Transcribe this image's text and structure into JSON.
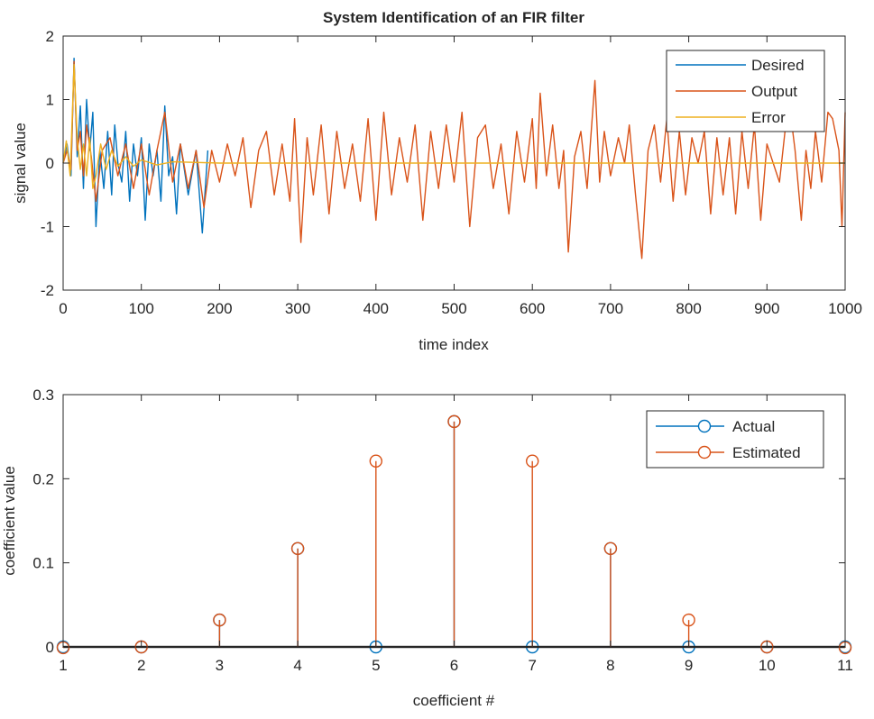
{
  "chart_data": [
    {
      "type": "line",
      "title": "System Identification of an FIR filter",
      "xlabel": "time index",
      "ylabel": "signal value",
      "xlim": [
        0,
        1000
      ],
      "ylim": [
        -2,
        2
      ],
      "xticks": [
        0,
        100,
        200,
        300,
        400,
        500,
        600,
        700,
        800,
        900,
        1000
      ],
      "yticks": [
        -2,
        -1,
        0,
        1,
        2
      ],
      "grid": false,
      "legend_position": "top-right",
      "series": [
        {
          "name": "Desired",
          "color": "#0072BD",
          "points": [
            [
              0,
              0.0
            ],
            [
              5,
              0.3
            ],
            [
              10,
              -0.2
            ],
            [
              14,
              1.65
            ],
            [
              18,
              0.1
            ],
            [
              22,
              0.9
            ],
            [
              26,
              -0.4
            ],
            [
              30,
              1.0
            ],
            [
              34,
              0.2
            ],
            [
              38,
              0.8
            ],
            [
              42,
              -1.0
            ],
            [
              47,
              0.2
            ],
            [
              52,
              -0.4
            ],
            [
              57,
              0.5
            ],
            [
              62,
              -0.5
            ],
            [
              66,
              0.6
            ],
            [
              70,
              0.0
            ],
            [
              75,
              -0.3
            ],
            [
              80,
              0.5
            ],
            [
              85,
              -0.6
            ],
            [
              90,
              0.3
            ],
            [
              95,
              -0.2
            ],
            [
              100,
              0.4
            ],
            [
              105,
              -0.9
            ],
            [
              110,
              0.3
            ],
            [
              115,
              -0.2
            ],
            [
              120,
              0.2
            ],
            [
              125,
              -0.6
            ],
            [
              130,
              0.9
            ],
            [
              135,
              -0.2
            ],
            [
              140,
              0.1
            ],
            [
              145,
              -0.8
            ],
            [
              150,
              0.3
            ],
            [
              160,
              -0.5
            ],
            [
              170,
              0.2
            ],
            [
              178,
              -1.1
            ],
            [
              185,
              0.2
            ]
          ]
        },
        {
          "name": "Output",
          "color": "#D95319",
          "points": [
            [
              0,
              0.0
            ],
            [
              5,
              0.2
            ],
            [
              10,
              -0.1
            ],
            [
              14,
              1.6
            ],
            [
              18,
              0.2
            ],
            [
              22,
              0.5
            ],
            [
              26,
              -0.2
            ],
            [
              30,
              0.6
            ],
            [
              36,
              0.1
            ],
            [
              42,
              -0.6
            ],
            [
              50,
              0.2
            ],
            [
              60,
              0.4
            ],
            [
              70,
              -0.2
            ],
            [
              80,
              0.3
            ],
            [
              90,
              -0.4
            ],
            [
              100,
              0.3
            ],
            [
              110,
              -0.5
            ],
            [
              120,
              0.2
            ],
            [
              130,
              0.8
            ],
            [
              140,
              -0.3
            ],
            [
              150,
              0.3
            ],
            [
              160,
              -0.4
            ],
            [
              170,
              0.2
            ],
            [
              180,
              -0.7
            ],
            [
              190,
              0.2
            ],
            [
              200,
              -0.3
            ],
            [
              210,
              0.3
            ],
            [
              220,
              -0.2
            ],
            [
              230,
              0.4
            ],
            [
              240,
              -0.7
            ],
            [
              250,
              0.2
            ],
            [
              260,
              0.5
            ],
            [
              270,
              -0.5
            ],
            [
              280,
              0.3
            ],
            [
              290,
              -0.6
            ],
            [
              296,
              0.7
            ],
            [
              304,
              -1.25
            ],
            [
              312,
              0.4
            ],
            [
              320,
              -0.5
            ],
            [
              330,
              0.6
            ],
            [
              340,
              -0.8
            ],
            [
              350,
              0.5
            ],
            [
              360,
              -0.4
            ],
            [
              370,
              0.3
            ],
            [
              380,
              -0.6
            ],
            [
              390,
              0.7
            ],
            [
              400,
              -0.9
            ],
            [
              410,
              0.8
            ],
            [
              420,
              -0.5
            ],
            [
              430,
              0.4
            ],
            [
              440,
              -0.3
            ],
            [
              450,
              0.6
            ],
            [
              460,
              -0.9
            ],
            [
              470,
              0.5
            ],
            [
              480,
              -0.4
            ],
            [
              490,
              0.6
            ],
            [
              500,
              -0.3
            ],
            [
              510,
              0.8
            ],
            [
              520,
              -1.0
            ],
            [
              530,
              0.4
            ],
            [
              540,
              0.6
            ],
            [
              550,
              -0.4
            ],
            [
              560,
              0.3
            ],
            [
              570,
              -0.8
            ],
            [
              580,
              0.5
            ],
            [
              590,
              -0.3
            ],
            [
              600,
              0.7
            ],
            [
              605,
              -0.4
            ],
            [
              610,
              1.1
            ],
            [
              618,
              -0.2
            ],
            [
              626,
              0.6
            ],
            [
              634,
              -0.4
            ],
            [
              640,
              0.2
            ],
            [
              646,
              -1.4
            ],
            [
              654,
              0.1
            ],
            [
              662,
              0.5
            ],
            [
              670,
              -0.4
            ],
            [
              680,
              1.3
            ],
            [
              686,
              -0.3
            ],
            [
              692,
              0.5
            ],
            [
              700,
              -0.2
            ],
            [
              710,
              0.4
            ],
            [
              718,
              0.0
            ],
            [
              724,
              0.6
            ],
            [
              732,
              -0.5
            ],
            [
              740,
              -1.5
            ],
            [
              748,
              0.2
            ],
            [
              756,
              0.6
            ],
            [
              764,
              -0.3
            ],
            [
              772,
              0.7
            ],
            [
              780,
              -0.6
            ],
            [
              788,
              0.5
            ],
            [
              796,
              -0.5
            ],
            [
              804,
              0.4
            ],
            [
              812,
              0.0
            ],
            [
              820,
              0.5
            ],
            [
              828,
              -0.8
            ],
            [
              836,
              0.4
            ],
            [
              844,
              -0.5
            ],
            [
              852,
              0.4
            ],
            [
              860,
              -0.8
            ],
            [
              868,
              0.5
            ],
            [
              876,
              -0.4
            ],
            [
              884,
              0.6
            ],
            [
              892,
              -0.9
            ],
            [
              900,
              0.3
            ],
            [
              908,
              0.0
            ],
            [
              916,
              -0.3
            ],
            [
              924,
              0.6
            ],
            [
              930,
              0.8
            ],
            [
              936,
              0.2
            ],
            [
              944,
              -0.9
            ],
            [
              950,
              0.2
            ],
            [
              956,
              -0.4
            ],
            [
              962,
              0.5
            ],
            [
              970,
              -0.3
            ],
            [
              978,
              0.8
            ],
            [
              984,
              0.7
            ],
            [
              992,
              0.2
            ],
            [
              996,
              -1.0
            ],
            [
              1000,
              0.8
            ]
          ]
        },
        {
          "name": "Error",
          "color": "#EDB120",
          "points": [
            [
              0,
              0.0
            ],
            [
              4,
              0.35
            ],
            [
              9,
              -0.2
            ],
            [
              14,
              1.55
            ],
            [
              18,
              0.4
            ],
            [
              22,
              -0.1
            ],
            [
              26,
              0.3
            ],
            [
              30,
              -0.2
            ],
            [
              34,
              0.4
            ],
            [
              38,
              -0.4
            ],
            [
              42,
              -0.2
            ],
            [
              48,
              0.3
            ],
            [
              55,
              -0.1
            ],
            [
              62,
              0.2
            ],
            [
              70,
              -0.05
            ],
            [
              80,
              0.1
            ],
            [
              90,
              -0.05
            ],
            [
              100,
              0.05
            ],
            [
              120,
              -0.03
            ],
            [
              140,
              0.02
            ],
            [
              200,
              0.0
            ],
            [
              300,
              0.0
            ],
            [
              400,
              0.0
            ],
            [
              500,
              0.0
            ],
            [
              600,
              0.0
            ],
            [
              700,
              0.0
            ],
            [
              800,
              0.0
            ],
            [
              900,
              0.0
            ],
            [
              1000,
              0.0
            ]
          ]
        }
      ]
    },
    {
      "type": "stem",
      "title": "",
      "xlabel": "coefficient #",
      "ylabel": "coefficient value",
      "xlim": [
        1,
        11
      ],
      "ylim": [
        0,
        0.3
      ],
      "xticks": [
        1,
        2,
        3,
        4,
        5,
        6,
        7,
        8,
        9,
        10,
        11
      ],
      "yticks": [
        0,
        0.1,
        0.2,
        0.3
      ],
      "grid": false,
      "legend_position": "top-right",
      "categories": [
        1,
        2,
        3,
        4,
        5,
        6,
        7,
        8,
        9,
        10,
        11
      ],
      "series": [
        {
          "name": "Actual",
          "color": "#0072BD",
          "values": [
            0.0,
            0.0,
            0.032,
            0.117,
            0.0,
            0.268,
            0.0,
            0.117,
            0.0,
            0.0,
            0.0
          ]
        },
        {
          "name": "Estimated",
          "color": "#D95319",
          "values": [
            -0.001,
            0.0,
            0.032,
            0.117,
            0.221,
            0.268,
            0.221,
            0.117,
            0.032,
            0.0,
            -0.001
          ]
        }
      ]
    }
  ]
}
